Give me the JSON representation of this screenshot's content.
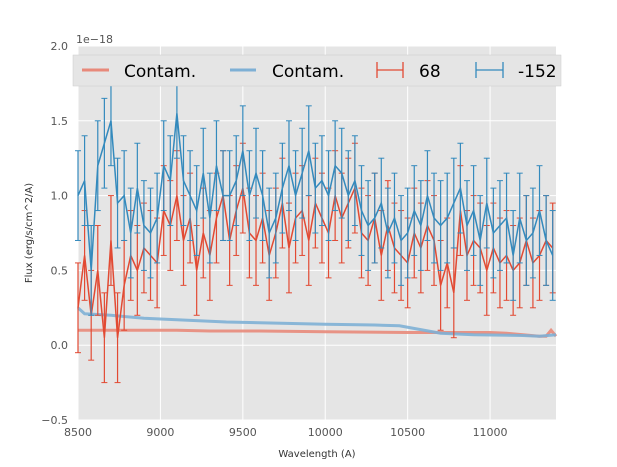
{
  "chart_data": {
    "type": "line",
    "title": "",
    "xlabel": "Wavelength (A)",
    "ylabel": "Flux (erg/s/cm^2/A)",
    "y_offset_label": "1e−18",
    "xlim": [
      8500,
      11400
    ],
    "ylim": [
      -0.5,
      2.0
    ],
    "xticks": [
      8500,
      9000,
      9500,
      10000,
      10500,
      11000
    ],
    "yticks": [
      -0.5,
      0.0,
      0.5,
      1.0,
      1.5,
      2.0
    ],
    "xtick_labels": [
      "8500",
      "9000",
      "9500",
      "10000",
      "10500",
      "11000"
    ],
    "ytick_labels": [
      "−0.5",
      "0.0",
      "0.5",
      "1.0",
      "1.5",
      "2.0"
    ],
    "grid": true,
    "legend": {
      "placement": "top",
      "entries": [
        "Contam.",
        "Contam.",
        "68",
        "-152"
      ]
    },
    "x": [
      8500,
      8540,
      8580,
      8620,
      8660,
      8700,
      8740,
      8780,
      8820,
      8860,
      8900,
      8940,
      8980,
      9020,
      9060,
      9100,
      9140,
      9180,
      9220,
      9260,
      9300,
      9340,
      9380,
      9420,
      9460,
      9500,
      9540,
      9580,
      9620,
      9660,
      9700,
      9740,
      9780,
      9820,
      9860,
      9900,
      9940,
      9980,
      10020,
      10060,
      10100,
      10140,
      10180,
      10220,
      10260,
      10300,
      10340,
      10380,
      10420,
      10460,
      10500,
      10540,
      10580,
      10620,
      10660,
      10700,
      10740,
      10780,
      10820,
      10860,
      10900,
      10940,
      10980,
      11020,
      11060,
      11100,
      11140,
      11180,
      11220,
      11260,
      11300,
      11340,
      11380
    ],
    "series": [
      {
        "name": "68",
        "kind": "errorbar",
        "color": "#e24a33",
        "error": 0.3,
        "values": [
          0.25,
          0.6,
          0.2,
          0.5,
          0.05,
          0.7,
          0.05,
          0.4,
          0.6,
          0.5,
          0.65,
          0.6,
          0.55,
          0.9,
          0.8,
          1.0,
          0.7,
          0.85,
          0.5,
          0.75,
          0.6,
          0.85,
          1.0,
          0.7,
          0.9,
          1.05,
          0.75,
          0.7,
          0.85,
          0.6,
          0.75,
          0.95,
          0.65,
          0.85,
          0.9,
          0.7,
          0.95,
          0.85,
          0.75,
          1.0,
          0.85,
          0.95,
          1.05,
          0.75,
          0.7,
          0.85,
          0.6,
          0.8,
          0.65,
          0.6,
          0.55,
          0.75,
          0.65,
          0.8,
          0.7,
          0.4,
          0.55,
          0.35,
          0.9,
          0.6,
          0.7,
          0.65,
          0.5,
          0.65,
          0.55,
          0.6,
          0.5,
          0.55,
          0.7,
          0.55,
          0.6,
          0.7,
          0.65
        ]
      },
      {
        "name": "-152",
        "kind": "errorbar",
        "color": "#348abd",
        "error": 0.3,
        "values": [
          1.0,
          1.1,
          0.5,
          1.2,
          1.35,
          1.5,
          0.95,
          1.0,
          0.75,
          1.05,
          0.8,
          0.75,
          0.85,
          1.2,
          1.1,
          1.55,
          1.1,
          1.0,
          0.9,
          1.15,
          0.85,
          1.2,
          1.0,
          1.0,
          1.1,
          1.3,
          1.0,
          1.15,
          1.0,
          0.75,
          0.85,
          1.05,
          1.2,
          1.0,
          1.15,
          1.3,
          1.05,
          1.1,
          1.0,
          1.2,
          1.15,
          1.0,
          1.1,
          0.9,
          0.8,
          0.85,
          0.95,
          0.75,
          0.85,
          0.7,
          0.75,
          0.9,
          0.8,
          1.0,
          0.85,
          0.8,
          0.85,
          0.95,
          1.05,
          0.8,
          0.9,
          0.7,
          0.95,
          0.75,
          0.8,
          0.85,
          0.6,
          0.85,
          0.7,
          0.75,
          0.9,
          0.7,
          0.6
        ]
      },
      {
        "name": "Contam.",
        "kind": "line",
        "color": "#e8897a",
        "x": [
          8500,
          8700,
          9000,
          9100,
          9300,
          9600,
          10000,
          10500,
          10800,
          11000,
          11100,
          11200,
          11300,
          11340,
          11370,
          11400
        ],
        "values": [
          0.1,
          0.1,
          0.1,
          0.1,
          0.095,
          0.095,
          0.09,
          0.085,
          0.085,
          0.085,
          0.08,
          0.07,
          0.06,
          0.06,
          0.1,
          0.06
        ]
      },
      {
        "name": "Contam.",
        "kind": "line",
        "color": "#7eb0d5",
        "x": [
          8500,
          8540,
          8700,
          8900,
          9100,
          9400,
          9800,
          10000,
          10300,
          10450,
          10600,
          10700,
          10900,
          11200,
          11300,
          11400
        ],
        "values": [
          0.25,
          0.21,
          0.2,
          0.18,
          0.17,
          0.155,
          0.145,
          0.14,
          0.135,
          0.13,
          0.1,
          0.08,
          0.07,
          0.065,
          0.06,
          0.07
        ]
      }
    ]
  }
}
